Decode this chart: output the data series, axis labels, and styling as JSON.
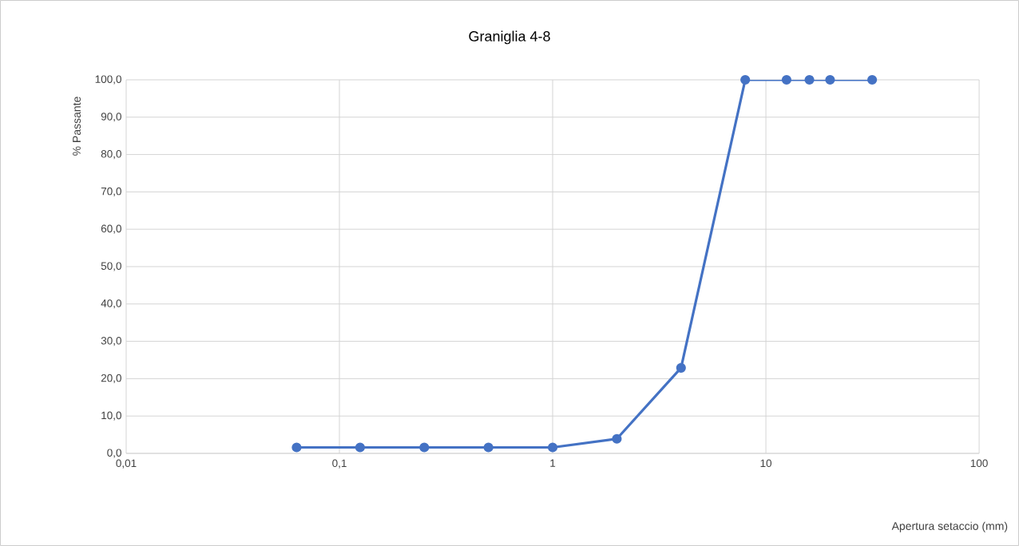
{
  "chart_data": {
    "type": "line",
    "title": "Graniglia 4-8",
    "xlabel": "Apertura setaccio (mm)",
    "ylabel": "% Passante",
    "log": "x",
    "grid": true,
    "marker": "circle",
    "line_style": "solid",
    "xlim": [
      0.01,
      100
    ],
    "ylim": [
      0,
      100
    ],
    "xticks": [
      {
        "value": 0.01,
        "label": "0,01"
      },
      {
        "value": 0.1,
        "label": "0,1"
      },
      1,
      10,
      100
    ],
    "yticks": [
      {
        "value": 0,
        "label": "0,0"
      },
      {
        "value": 10,
        "label": "10,0"
      },
      {
        "value": 20,
        "label": "20,0"
      },
      {
        "value": 30,
        "label": "30,0"
      },
      {
        "value": 40,
        "label": "40,0"
      },
      {
        "value": 50,
        "label": "50,0"
      },
      {
        "value": 60,
        "label": "60,0"
      },
      {
        "value": 70,
        "label": "70,0"
      },
      {
        "value": 80,
        "label": "80,0"
      },
      {
        "value": 90,
        "label": "90,0"
      },
      {
        "value": 100,
        "label": "100,0"
      }
    ],
    "x": [
      0.063,
      0.125,
      0.25,
      0.5,
      1,
      2,
      4,
      8,
      12.5,
      16,
      20,
      31.5
    ],
    "series": [
      {
        "color": "#4472c4",
        "values": [
          1.6,
          1.6,
          1.6,
          1.6,
          1.6,
          3.9,
          22.9,
          100,
          100,
          100,
          100,
          100
        ]
      }
    ]
  }
}
